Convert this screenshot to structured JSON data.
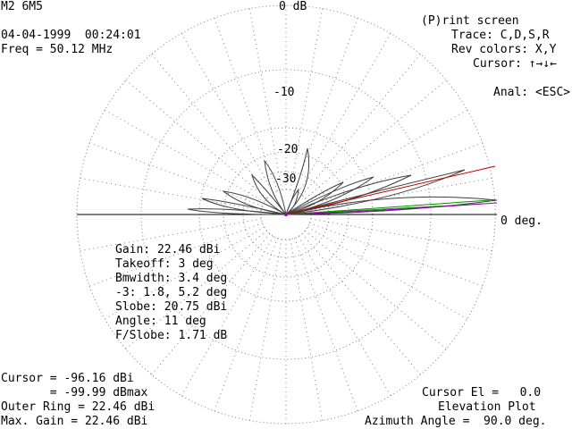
{
  "header": {
    "title": "M2 6M5",
    "date_time": "04-04-1999  00:24:01",
    "freq": "Freq = 50.12 MHz"
  },
  "plot_labels": {
    "ring_0": "0 dB",
    "ring_10": "-10",
    "ring_20": "-20",
    "ring_30": "-30",
    "zero_deg": "0 deg."
  },
  "menu": {
    "print": "(P)rint screen",
    "trace": "Trace: C,D,S,R",
    "rev": "Rev colors: X,Y",
    "cursor": "Cursor: ↑→↓←",
    "anal": "Anal: <ESC>"
  },
  "analysis": {
    "gain": "Gain: 22.46 dBi",
    "takeoff": "Takeoff: 3 deg",
    "bmwidth": "Bmwidth: 3.4 deg",
    "minus3": "-3: 1.8, 5.2 deg",
    "slobe": "Slobe: 20.75 dBi",
    "angle": "Angle: 11 deg",
    "fslobe": "F/Slobe: 1.71 dB"
  },
  "footer_left": {
    "cursor": "Cursor = -96.16 dBi",
    "dbmax": "       = -99.99 dBmax",
    "outer_ring": "Outer Ring = 22.46 dBi",
    "max_gain": "Max. Gain = 22.46 dBi"
  },
  "footer_right": {
    "cursor_el": "Cursor El =   0.0",
    "plot_type": "Elevation Plot",
    "azimuth": "Azimuth Angle =  90.0 deg."
  },
  "colors": {
    "background": "#ffffff",
    "text": "#000000",
    "grid": "#808080",
    "pattern": "#404040",
    "cursor_line": "#c00000",
    "takeoff_line": "#009000",
    "purple_trace": "#a000c0"
  }
}
